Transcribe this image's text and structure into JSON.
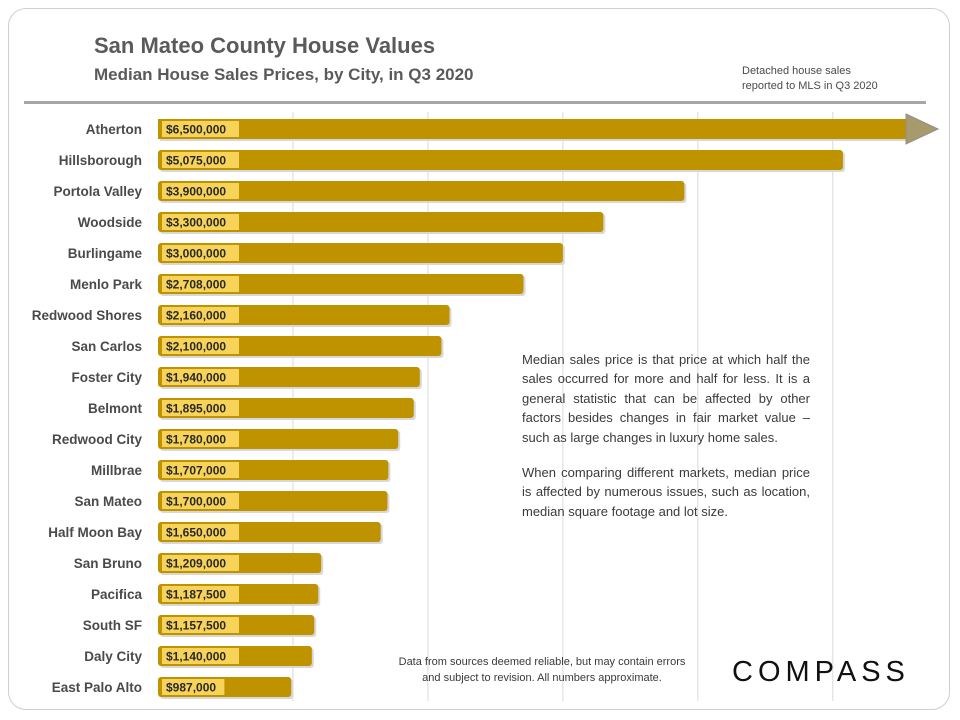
{
  "header": {
    "title": "San Mateo County House Values",
    "subtitle": "Median House Sales Prices, by City, in Q3 2020",
    "source_note_line1": "Detached house sales",
    "source_note_line2": "reported to MLS in Q3 2020"
  },
  "annotation": {
    "paragraph1": "Median sales price is that price at which half the sales occurred for more and half for less. It is a general statistic that can be affected by other factors besides changes in fair market value – such as large changes in luxury  home sales.",
    "paragraph2": "When comparing different markets, median price is affected by numerous issues, such as location, median square footage and lot size."
  },
  "footer": {
    "disclaimer_line1": "Data from sources deemed reliable, but may contain errors",
    "disclaimer_line2": "and subject to revision. All numbers approximate.",
    "logo": "COMPASS"
  },
  "chart_data": {
    "type": "bar",
    "orientation": "horizontal",
    "title": "San Mateo County House Values",
    "subtitle": "Median House Sales Prices, by City, in Q3 2020",
    "categories": [
      "Atherton",
      "Hillsborough",
      "Portola Valley",
      "Woodside",
      "Burlingame",
      "Menlo Park",
      "Redwood Shores",
      "San Carlos",
      "Foster City",
      "Belmont",
      "Redwood City",
      "Millbrae",
      "San Mateo",
      "Half Moon Bay",
      "San Bruno",
      "Pacifica",
      "South SF",
      "Daly City",
      "East Palo Alto"
    ],
    "values": [
      6500000,
      5075000,
      3900000,
      3300000,
      3000000,
      2708000,
      2160000,
      2100000,
      1940000,
      1895000,
      1780000,
      1707000,
      1700000,
      1650000,
      1209000,
      1187500,
      1157500,
      1140000,
      987000
    ],
    "value_labels": [
      "$6,500,000",
      "$5,075,000",
      "$3,900,000",
      "$3,300,000",
      "$3,000,000",
      "$2,708,000",
      "$2,160,000",
      "$2,100,000",
      "$1,940,000",
      "$1,895,000",
      "$1,780,000",
      "$1,707,000",
      "$1,700,000",
      "$1,650,000",
      "$1,209,000",
      "$1,187,500",
      "$1,157,500",
      "$1,140,000",
      "$987,000"
    ],
    "first_bar_truncated_with_arrow": true,
    "xlim": [
      0,
      5500000
    ],
    "gridlines_at": [
      1000000,
      2000000,
      3000000,
      4000000,
      5000000
    ],
    "grid": true,
    "bar_color": "#bf9300",
    "label_box_color": "#f8d35a",
    "text_color": "#4a4a4a"
  }
}
